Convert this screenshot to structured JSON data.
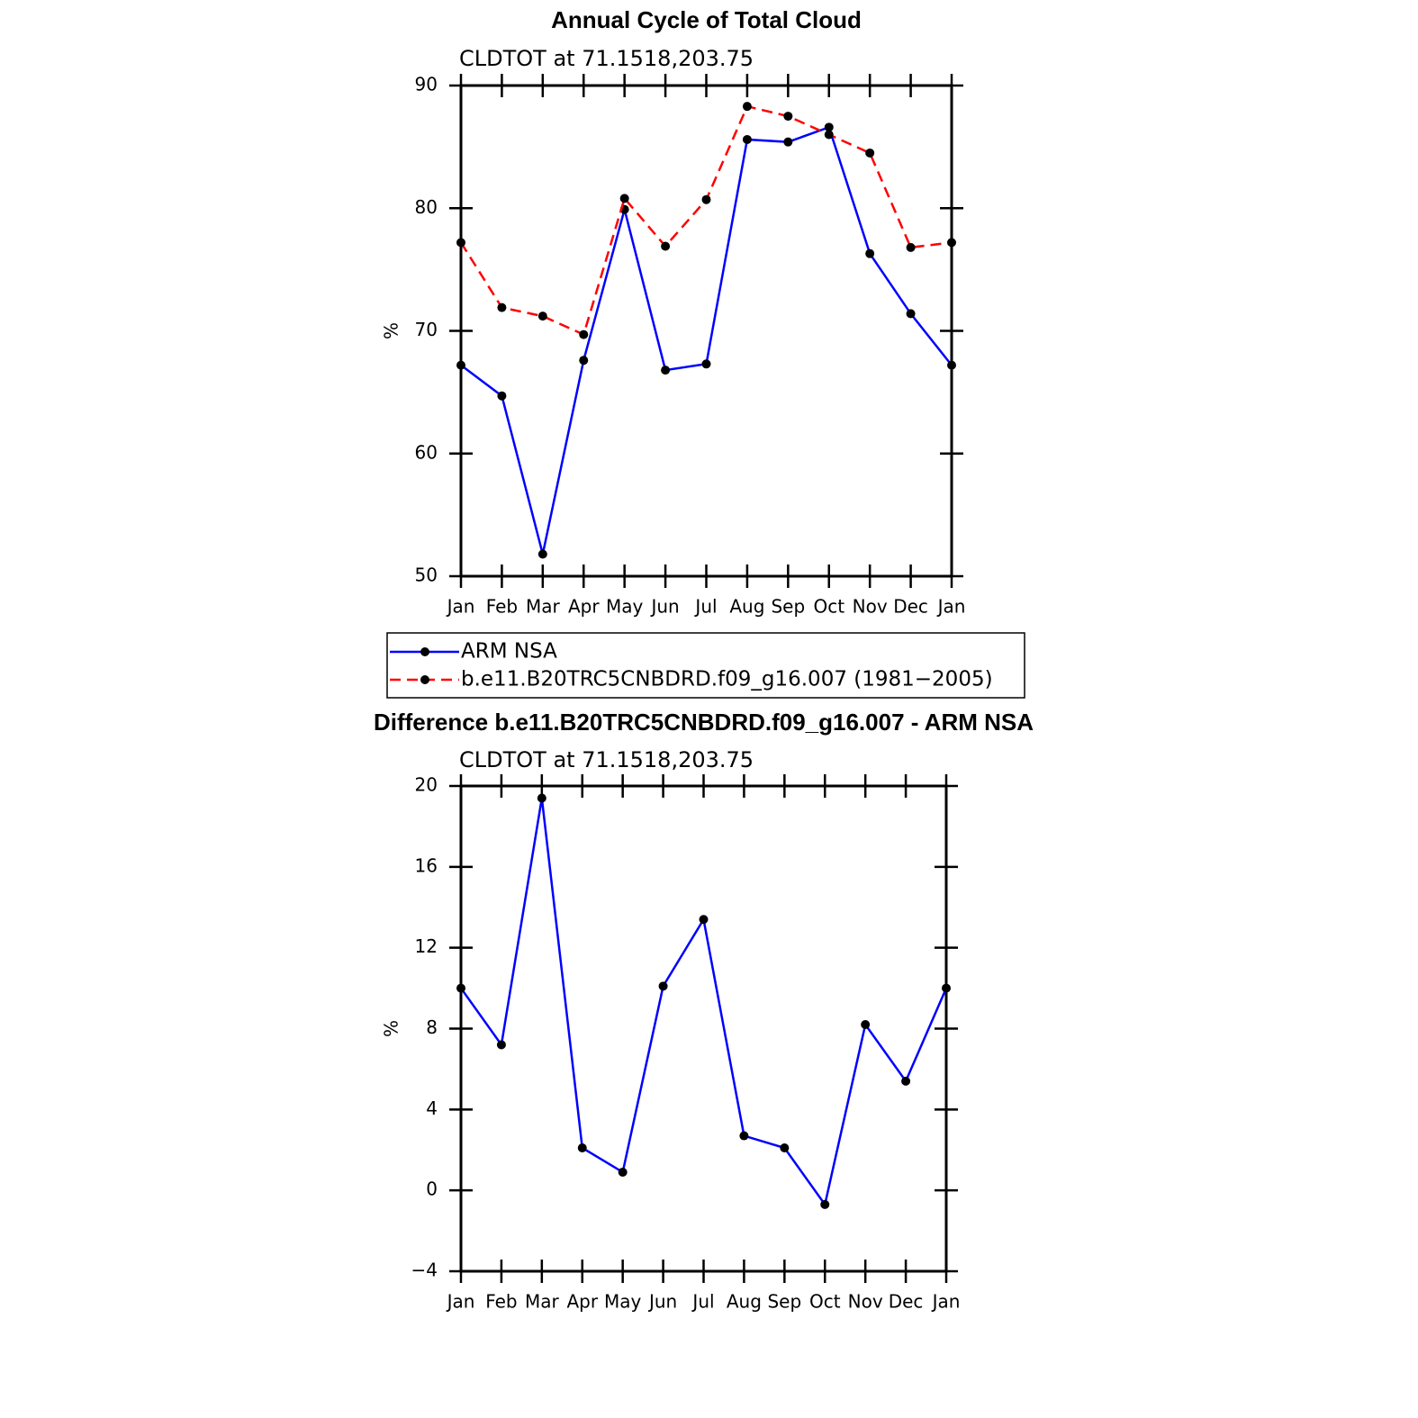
{
  "chart_data": [
    {
      "type": "line",
      "title": "Annual Cycle of Total Cloud",
      "subtitle": "CLDTOT at 71.1518,203.75",
      "ylabel": "%",
      "categories": [
        "Jan",
        "Feb",
        "Mar",
        "Apr",
        "May",
        "Jun",
        "Jul",
        "Aug",
        "Sep",
        "Oct",
        "Nov",
        "Dec",
        "Jan"
      ],
      "series": [
        {
          "name": "ARM NSA",
          "color": "#0000ff",
          "line_style": "solid",
          "values": [
            67.2,
            64.7,
            51.8,
            67.6,
            79.9,
            66.8,
            67.3,
            85.6,
            85.4,
            86.6,
            76.3,
            71.4,
            67.2
          ]
        },
        {
          "name": "b.e11.B20TRC5CNBDRD.f09_g16.007 (1981−2005)",
          "color": "#ff0000",
          "line_style": "dashed",
          "values": [
            77.2,
            71.9,
            71.2,
            69.7,
            80.8,
            76.9,
            80.7,
            88.3,
            87.5,
            86.0,
            84.5,
            76.8,
            77.2
          ]
        }
      ],
      "marker_color": "#000000",
      "ylim": [
        50,
        90
      ],
      "yticks": [
        50,
        60,
        70,
        80,
        90
      ],
      "legend": true
    },
    {
      "type": "line",
      "title": "Difference b.e11.B20TRC5CNBDRD.f09_g16.007 - ARM NSA",
      "subtitle": "CLDTOT at 71.1518,203.75",
      "ylabel": "%",
      "categories": [
        "Jan",
        "Feb",
        "Mar",
        "Apr",
        "May",
        "Jun",
        "Jul",
        "Aug",
        "Sep",
        "Oct",
        "Nov",
        "Dec",
        "Jan"
      ],
      "series": [
        {
          "color": "#0000ff",
          "line_style": "solid",
          "values": [
            10.0,
            7.2,
            19.4,
            2.1,
            0.9,
            10.1,
            13.4,
            2.7,
            2.1,
            -0.7,
            8.2,
            5.4,
            10.0
          ]
        }
      ],
      "marker_color": "#000000",
      "ylim": [
        -4,
        20
      ],
      "yticks": [
        {
          "value": -4,
          "label": "−4"
        },
        0,
        4,
        8,
        12,
        16,
        20
      ],
      "legend": false
    }
  ]
}
